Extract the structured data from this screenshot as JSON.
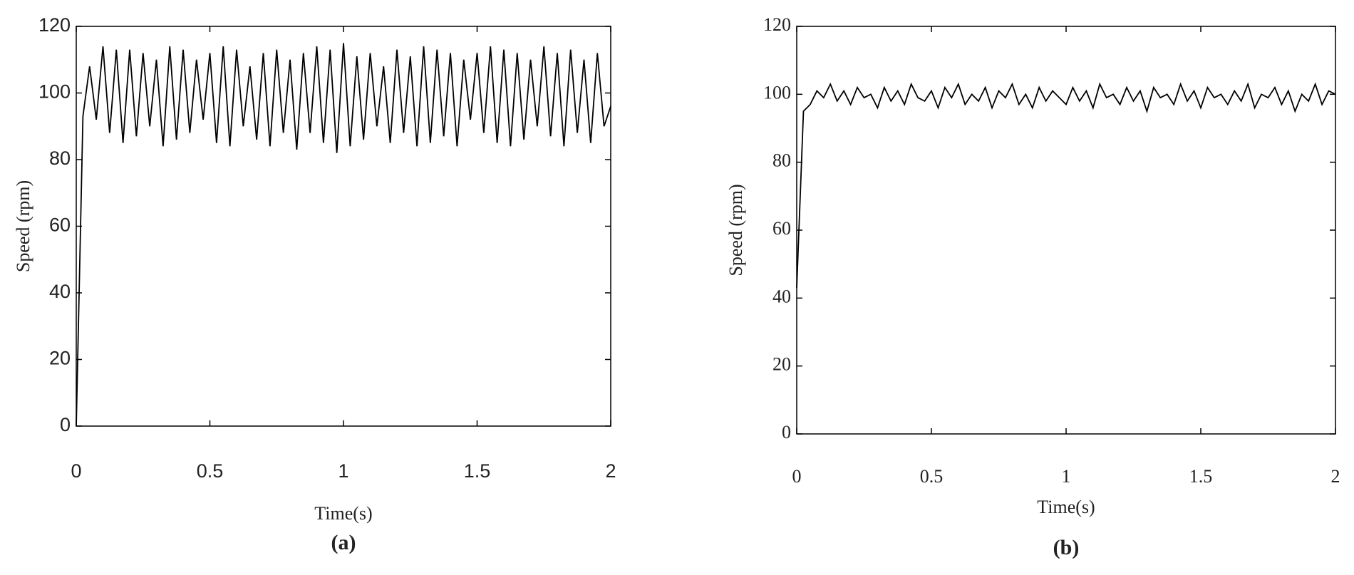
{
  "chart_data": [
    {
      "type": "line",
      "ylabel": "Speed (rpm)",
      "xlabel": "Time(s)",
      "caption": "(a)",
      "x": [
        0,
        0.025,
        0.05,
        0.075,
        0.1,
        0.125,
        0.15,
        0.175,
        0.2,
        0.225,
        0.25,
        0.275,
        0.3,
        0.325,
        0.35,
        0.375,
        0.4,
        0.425,
        0.45,
        0.475,
        0.5,
        0.525,
        0.55,
        0.575,
        0.6,
        0.625,
        0.65,
        0.675,
        0.7,
        0.725,
        0.75,
        0.775,
        0.8,
        0.825,
        0.85,
        0.875,
        0.9,
        0.925,
        0.95,
        0.975,
        1,
        1.025,
        1.05,
        1.075,
        1.1,
        1.125,
        1.15,
        1.175,
        1.2,
        1.225,
        1.25,
        1.275,
        1.3,
        1.325,
        1.35,
        1.375,
        1.4,
        1.425,
        1.45,
        1.475,
        1.5,
        1.525,
        1.55,
        1.575,
        1.6,
        1.625,
        1.65,
        1.675,
        1.7,
        1.725,
        1.75,
        1.775,
        1.8,
        1.825,
        1.85,
        1.875,
        1.9,
        1.925,
        1.95,
        1.975,
        2
      ],
      "values": [
        0,
        93,
        108,
        92,
        114,
        88,
        113,
        85,
        113,
        87,
        112,
        90,
        110,
        84,
        114,
        86,
        113,
        88,
        110,
        92,
        112,
        85,
        114,
        84,
        113,
        90,
        108,
        86,
        112,
        84,
        113,
        88,
        110,
        83,
        112,
        88,
        114,
        85,
        113,
        82,
        115,
        84,
        111,
        86,
        112,
        90,
        108,
        85,
        113,
        88,
        111,
        84,
        114,
        85,
        113,
        87,
        112,
        84,
        110,
        92,
        112,
        88,
        114,
        85,
        113,
        84,
        112,
        86,
        110,
        90,
        114,
        87,
        112,
        84,
        113,
        88,
        110,
        85,
        112,
        90,
        96
      ],
      "color": "#000000",
      "xlim": [
        0,
        2
      ],
      "ylim": [
        0,
        120
      ],
      "xticks": [
        0,
        0.5,
        1,
        1.5,
        2
      ],
      "yticks": [
        0,
        20,
        40,
        60,
        80,
        100,
        120
      ]
    },
    {
      "type": "line",
      "ylabel": "Speed (rpm)",
      "xlabel": "Time(s)",
      "caption": "(b)",
      "x": [
        0,
        0.025,
        0.05,
        0.075,
        0.1,
        0.125,
        0.15,
        0.175,
        0.2,
        0.225,
        0.25,
        0.275,
        0.3,
        0.325,
        0.35,
        0.375,
        0.4,
        0.425,
        0.45,
        0.475,
        0.5,
        0.525,
        0.55,
        0.575,
        0.6,
        0.625,
        0.65,
        0.675,
        0.7,
        0.725,
        0.75,
        0.775,
        0.8,
        0.825,
        0.85,
        0.875,
        0.9,
        0.925,
        0.95,
        0.975,
        1,
        1.025,
        1.05,
        1.075,
        1.1,
        1.125,
        1.15,
        1.175,
        1.2,
        1.225,
        1.25,
        1.275,
        1.3,
        1.325,
        1.35,
        1.375,
        1.4,
        1.425,
        1.45,
        1.475,
        1.5,
        1.525,
        1.55,
        1.575,
        1.6,
        1.625,
        1.65,
        1.675,
        1.7,
        1.725,
        1.75,
        1.775,
        1.8,
        1.825,
        1.85,
        1.875,
        1.9,
        1.925,
        1.95,
        1.975,
        2
      ],
      "values": [
        43,
        95,
        97,
        101,
        99,
        103,
        98,
        101,
        97,
        102,
        99,
        100,
        96,
        102,
        98,
        101,
        97,
        103,
        99,
        98,
        101,
        96,
        102,
        99,
        103,
        97,
        100,
        98,
        102,
        96,
        101,
        99,
        103,
        97,
        100,
        96,
        102,
        98,
        101,
        99,
        97,
        102,
        98,
        101,
        96,
        103,
        99,
        100,
        97,
        102,
        98,
        101,
        95,
        102,
        99,
        100,
        97,
        103,
        98,
        101,
        96,
        102,
        99,
        100,
        97,
        101,
        98,
        103,
        96,
        100,
        99,
        102,
        97,
        101,
        95,
        100,
        98,
        103,
        97,
        101,
        100
      ],
      "color": "#000000",
      "xlim": [
        0,
        2
      ],
      "ylim": [
        0,
        120
      ],
      "xticks": [
        0,
        0.5,
        1,
        1.5,
        2
      ],
      "yticks": [
        0,
        20,
        40,
        60,
        80,
        100,
        120
      ]
    }
  ]
}
